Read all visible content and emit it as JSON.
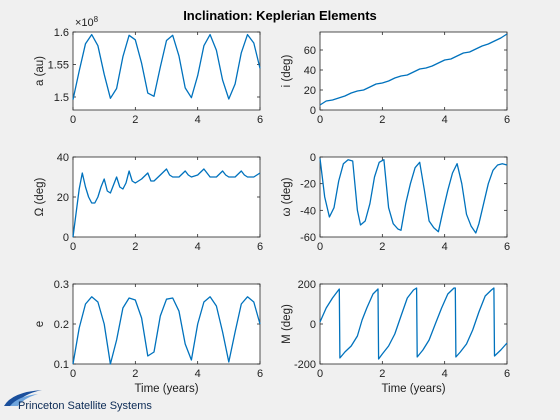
{
  "figure_title": "Inclination: Keplerian Elements",
  "logo_text": "Princeton Satellite Systems",
  "chart_data": [
    {
      "type": "line",
      "ylabel": "a (au)",
      "xlabel": "",
      "exponent_label": "×10",
      "exponent": "8",
      "xlim": [
        0,
        6
      ],
      "ylim": [
        148000000,
        160000000
      ],
      "xticks": [
        0,
        2,
        4,
        6
      ],
      "xtick_labels": [
        "0",
        "2",
        "4",
        "6"
      ],
      "yticks": [
        150000000,
        155000000,
        160000000
      ],
      "ytick_labels": [
        "1.5",
        "1.55",
        "1.6"
      ],
      "series": [
        {
          "x": [
            0,
            0.2,
            0.4,
            0.6,
            0.8,
            1.0,
            1.2,
            1.4,
            1.6,
            1.8,
            2.0,
            2.2,
            2.4,
            2.6,
            2.8,
            3.0,
            3.2,
            3.4,
            3.6,
            3.8,
            4.0,
            4.2,
            4.4,
            4.6,
            4.8,
            5.0,
            5.2,
            5.4,
            5.6,
            5.8,
            6.0
          ],
          "y": [
            149600000,
            154000000,
            158200000,
            159600000,
            157900000,
            153500000,
            149800000,
            151300000,
            156200000,
            159500000,
            158800000,
            155200000,
            150600000,
            150100000,
            154600000,
            158700000,
            159500000,
            156300000,
            151400000,
            149900000,
            153300000,
            157900000,
            159600000,
            157200000,
            152600000,
            149700000,
            152000000,
            156800000,
            159600000,
            158300000,
            154400000
          ]
        }
      ]
    },
    {
      "type": "line",
      "ylabel": "i (deg)",
      "xlabel": "",
      "xlim": [
        0,
        6
      ],
      "ylim": [
        0,
        78
      ],
      "xticks": [
        0,
        2,
        4,
        6
      ],
      "xtick_labels": [
        "0",
        "2",
        "4",
        "6"
      ],
      "yticks": [
        0,
        20,
        40,
        60
      ],
      "ytick_labels": [
        "0",
        "20",
        "40",
        "60"
      ],
      "series": [
        {
          "x": [
            0,
            0.2,
            0.4,
            0.6,
            0.8,
            1.0,
            1.2,
            1.4,
            1.6,
            1.8,
            2.0,
            2.2,
            2.4,
            2.6,
            2.8,
            3.0,
            3.2,
            3.4,
            3.6,
            3.8,
            4.0,
            4.2,
            4.4,
            4.6,
            4.8,
            5.0,
            5.2,
            5.4,
            5.6,
            5.8,
            6.0
          ],
          "y": [
            5,
            9,
            10,
            12,
            14,
            17,
            19,
            20,
            23,
            26,
            27,
            29,
            32,
            34,
            35,
            38,
            41,
            42,
            44,
            47,
            50,
            51,
            54,
            57,
            58,
            61,
            64,
            66,
            69,
            72,
            76
          ]
        }
      ]
    },
    {
      "type": "line",
      "ylabel": "Ω (deg)",
      "xlabel": "",
      "xlim": [
        0,
        6
      ],
      "ylim": [
        0,
        40
      ],
      "xticks": [
        0,
        2,
        4,
        6
      ],
      "xtick_labels": [
        "0",
        "2",
        "4",
        "6"
      ],
      "yticks": [
        0,
        20,
        40
      ],
      "ytick_labels": [
        "0",
        "20",
        "40"
      ],
      "series": [
        {
          "x": [
            0,
            0.1,
            0.2,
            0.3,
            0.4,
            0.5,
            0.6,
            0.7,
            0.8,
            0.9,
            1.0,
            1.1,
            1.2,
            1.3,
            1.4,
            1.5,
            1.6,
            1.7,
            1.8,
            1.9,
            2.0,
            2.2,
            2.4,
            2.5,
            2.6,
            2.8,
            3.0,
            3.1,
            3.2,
            3.4,
            3.6,
            3.7,
            3.8,
            4.0,
            4.2,
            4.3,
            4.4,
            4.6,
            4.8,
            4.9,
            5.0,
            5.2,
            5.4,
            5.5,
            5.6,
            5.8,
            6.0
          ],
          "y": [
            0,
            12,
            24,
            32,
            25,
            20,
            17,
            17,
            20,
            25,
            29,
            23,
            22,
            26,
            30,
            25,
            24,
            27,
            33,
            28,
            27,
            29,
            32,
            28,
            28,
            31,
            34,
            31,
            30,
            30,
            33,
            31,
            30,
            31,
            34,
            32,
            30,
            30,
            33,
            31,
            30,
            30,
            33,
            31,
            30,
            30,
            32
          ]
        }
      ]
    },
    {
      "type": "line",
      "ylabel": "ω (deg)",
      "xlabel": "",
      "xlim": [
        0,
        6
      ],
      "ylim": [
        -60,
        0
      ],
      "xticks": [
        0,
        2,
        4,
        6
      ],
      "xtick_labels": [
        "0",
        "2",
        "4",
        "6"
      ],
      "yticks": [
        -60,
        -40,
        -20,
        0
      ],
      "ytick_labels": [
        "-60",
        "-40",
        "-20",
        "0"
      ],
      "series": [
        {
          "x": [
            0,
            0.15,
            0.3,
            0.45,
            0.6,
            0.75,
            0.9,
            1.05,
            1.2,
            1.3,
            1.45,
            1.6,
            1.75,
            1.9,
            2.05,
            2.2,
            2.35,
            2.5,
            2.6,
            2.75,
            2.9,
            3.05,
            3.2,
            3.35,
            3.5,
            3.65,
            3.8,
            3.95,
            4.1,
            4.25,
            4.4,
            4.55,
            4.7,
            4.85,
            5.0,
            5.1,
            5.25,
            5.4,
            5.55,
            5.7,
            5.85,
            6.0
          ],
          "y": [
            -1,
            -30,
            -45,
            -38,
            -18,
            -5,
            -2,
            -3,
            -40,
            -51,
            -48,
            -35,
            -15,
            -4,
            -2,
            -38,
            -50,
            -54,
            -55,
            -35,
            -20,
            -8,
            -4,
            -25,
            -48,
            -53,
            -56,
            -40,
            -25,
            -12,
            -5,
            -20,
            -43,
            -52,
            -57,
            -50,
            -35,
            -20,
            -10,
            -6,
            -5,
            -6
          ]
        }
      ]
    },
    {
      "type": "line",
      "ylabel": "e",
      "xlabel": "Time (years)",
      "xlim": [
        0,
        6
      ],
      "ylim": [
        0.1,
        0.3
      ],
      "xticks": [
        0,
        2,
        4,
        6
      ],
      "xtick_labels": [
        "0",
        "2",
        "4",
        "6"
      ],
      "yticks": [
        0.1,
        0.2,
        0.3
      ],
      "ytick_labels": [
        "0.1",
        "0.2",
        "0.3"
      ],
      "series": [
        {
          "x": [
            0,
            0.2,
            0.4,
            0.6,
            0.8,
            1.0,
            1.2,
            1.4,
            1.6,
            1.8,
            2.0,
            2.2,
            2.4,
            2.6,
            2.8,
            3.0,
            3.2,
            3.4,
            3.6,
            3.8,
            4.0,
            4.2,
            4.4,
            4.6,
            4.8,
            5.0,
            5.2,
            5.4,
            5.6,
            5.8,
            6.0
          ],
          "y": [
            0.1,
            0.19,
            0.25,
            0.268,
            0.255,
            0.2,
            0.1,
            0.16,
            0.24,
            0.265,
            0.26,
            0.215,
            0.12,
            0.13,
            0.22,
            0.262,
            0.265,
            0.232,
            0.15,
            0.11,
            0.2,
            0.255,
            0.268,
            0.245,
            0.18,
            0.105,
            0.18,
            0.25,
            0.268,
            0.255,
            0.2
          ]
        }
      ]
    },
    {
      "type": "line",
      "ylabel": "M (deg)",
      "xlabel": "Time (years)",
      "xlim": [
        0,
        6
      ],
      "ylim": [
        -200,
        200
      ],
      "xticks": [
        0,
        2,
        4,
        6
      ],
      "xtick_labels": [
        "0",
        "2",
        "4",
        "6"
      ],
      "yticks": [
        -200,
        0,
        200
      ],
      "ytick_labels": [
        "-200",
        "0",
        "200"
      ],
      "series": [
        {
          "x": [
            0,
            0.2,
            0.4,
            0.62,
            0.64,
            0.8,
            1.0,
            1.2,
            1.35,
            1.5,
            1.7,
            1.86,
            1.88,
            2.0,
            2.2,
            2.4,
            2.6,
            2.8,
            3.0,
            3.1,
            3.12,
            3.3,
            3.5,
            3.7,
            3.9,
            4.1,
            4.3,
            4.34,
            4.36,
            4.5,
            4.7,
            4.9,
            5.1,
            5.3,
            5.5,
            5.58,
            5.6,
            5.8,
            6.0
          ],
          "y": [
            10,
            80,
            130,
            175,
            -170,
            -140,
            -110,
            -60,
            20,
            80,
            150,
            175,
            -175,
            -150,
            -110,
            -50,
            40,
            130,
            170,
            180,
            -165,
            -130,
            -80,
            0,
            80,
            150,
            180,
            180,
            -165,
            -140,
            -100,
            -30,
            60,
            140,
            170,
            180,
            -160,
            -130,
            -95
          ]
        }
      ]
    }
  ]
}
